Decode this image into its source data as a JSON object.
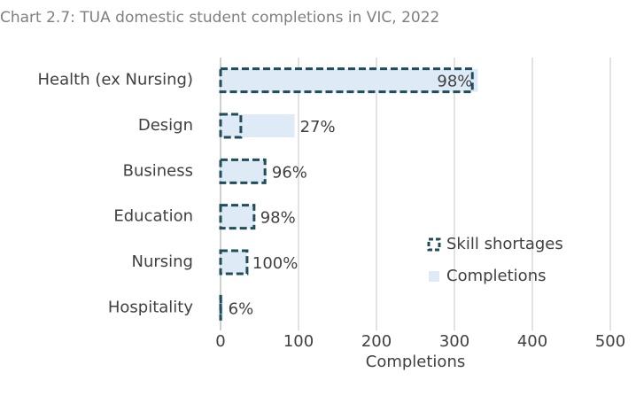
{
  "chart_data": {
    "type": "bar",
    "orientation": "horizontal",
    "title": "Chart 2.7: TUA domestic student completions in VIC, 2022",
    "x_label": "Completions",
    "categories": [
      "Health (ex Nursing)",
      "Design",
      "Business",
      "Education",
      "Nursing",
      "Hospitality"
    ],
    "series": [
      {
        "name": "Completions",
        "color": "#deebf7",
        "values": [
          330,
          95,
          59,
          44,
          34,
          3
        ]
      },
      {
        "name": "Skill shortages",
        "color": "#1f4e5a",
        "values": [
          323,
          26,
          57,
          43,
          34,
          0.2
        ]
      }
    ],
    "share_labels": [
      "98%",
      "27%",
      "96%",
      "98%",
      "100%",
      "6%"
    ],
    "xlim": [
      0,
      500
    ],
    "xticks": [
      0,
      100,
      200,
      300,
      400,
      500
    ],
    "grid": true,
    "legend": "right"
  }
}
